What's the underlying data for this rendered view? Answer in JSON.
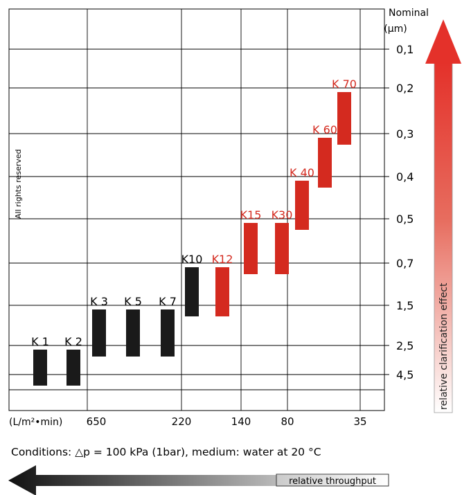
{
  "chart_data": {
    "type": "bar",
    "title": "",
    "watermark": "All rights reserved",
    "y_axis": {
      "title_line1": "Nominal",
      "title_line2": "(µm)",
      "ticks": [
        "0,1",
        "0,2",
        "0,3",
        "0,4",
        "0,5",
        "0,7",
        "1,5",
        "2,5",
        "4,5"
      ]
    },
    "x_axis": {
      "unit": "(L/m²•min)",
      "ticks": [
        "650",
        "220",
        "140",
        "80",
        "35"
      ]
    },
    "grades": [
      {
        "name": "K 1",
        "color": "#1a1a1a",
        "um_low": "2,5",
        "um_high": "4,5"
      },
      {
        "name": "K 2",
        "color": "#1a1a1a",
        "um_low": "2,5",
        "um_high": "4,5"
      },
      {
        "name": "K 3",
        "color": "#1a1a1a",
        "um_low": "1,5",
        "um_high": "2,5"
      },
      {
        "name": "K 5",
        "color": "#1a1a1a",
        "um_low": "1,5",
        "um_high": "2,5"
      },
      {
        "name": "K 7",
        "color": "#1a1a1a",
        "um_low": "1,5",
        "um_high": "2,5"
      },
      {
        "name": "K10",
        "color": "#1a1a1a",
        "um_low": "0,7",
        "um_high": "1,5"
      },
      {
        "name": "K12",
        "color": "#d42a1f",
        "um_low": "0,7",
        "um_high": "1,5"
      },
      {
        "name": "K15",
        "color": "#d42a1f",
        "um_low": "0,5",
        "um_high": "0,7"
      },
      {
        "name": "K30",
        "color": "#d42a1f",
        "um_low": "0,5",
        "um_high": "0,7"
      },
      {
        "name": "K 40",
        "color": "#d42a1f",
        "um_low": "0,4",
        "um_high": "0,5"
      },
      {
        "name": "K 60",
        "color": "#d42a1f",
        "um_low": "0,3",
        "um_high": "0,4"
      },
      {
        "name": "K 70",
        "color": "#d42a1f",
        "um_low": "0,2",
        "um_high": "0,3"
      }
    ],
    "conditions": "Conditions: △p = 100 kPa (1bar), medium: water at 20 °C",
    "arrow_right_label": "relative clarification effect",
    "arrow_bottom_label": "relative throughput"
  },
  "colors": {
    "black_bar": "#1a1a1a",
    "red_bar": "#d42a1f",
    "red_label": "#d42a1f",
    "grid": "#000000"
  }
}
